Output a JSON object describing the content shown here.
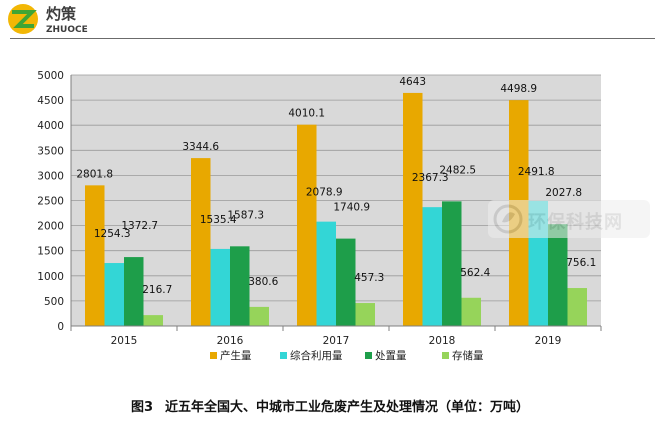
{
  "header": {
    "logo_text_cn": "灼策",
    "logo_text_en": "ZHUOCE"
  },
  "colors": {
    "产生量": "#E8A800",
    "综合利用量": "#33D6D6",
    "处置量": "#1E9E4A",
    "存储量": "#96D45A",
    "plot_bg": "#d9d9d9",
    "logo_yellow": "#F2B705",
    "logo_green": "#3FA535"
  },
  "chart_data": {
    "type": "bar",
    "categories": [
      "2015",
      "2016",
      "2017",
      "2018",
      "2019"
    ],
    "series": [
      {
        "name": "产生量",
        "values": [
          2801.8,
          3344.6,
          4010.1,
          4643,
          4498.9
        ]
      },
      {
        "name": "综合利用量",
        "values": [
          1254.3,
          1535.4,
          2078.9,
          2367.3,
          2491.8
        ]
      },
      {
        "name": "处置量",
        "values": [
          1372.7,
          1587.3,
          1740.9,
          2482.5,
          2027.8
        ]
      },
      {
        "name": "存储量",
        "values": [
          216.7,
          380.6,
          457.3,
          562.4,
          756.1
        ]
      }
    ],
    "data_labels": [
      [
        "2801.8",
        "3344.6",
        "4010.1",
        "4643",
        "4498.9"
      ],
      [
        "1254.3",
        "1535.4",
        "2078.9",
        "2367.3",
        "2491.8"
      ],
      [
        "1372.7",
        "1587.3",
        "1740.9",
        "2482.5",
        "2027.8"
      ],
      [
        "216.7",
        "380.6",
        "457.3",
        "562.4",
        "756.1"
      ]
    ],
    "yticks": [
      "0",
      "500",
      "1000",
      "1500",
      "2000",
      "2500",
      "3000",
      "3500",
      "4000",
      "4500",
      "5000"
    ],
    "ylim": [
      0,
      5000
    ],
    "grid": true,
    "legend_position": "bottom",
    "title": ""
  },
  "caption": {
    "figure_no": "图3",
    "text": "近五年全国大、中城市工业危废产生及处理情况（单位：万吨）"
  },
  "watermark": {
    "text": "环保科技网"
  }
}
